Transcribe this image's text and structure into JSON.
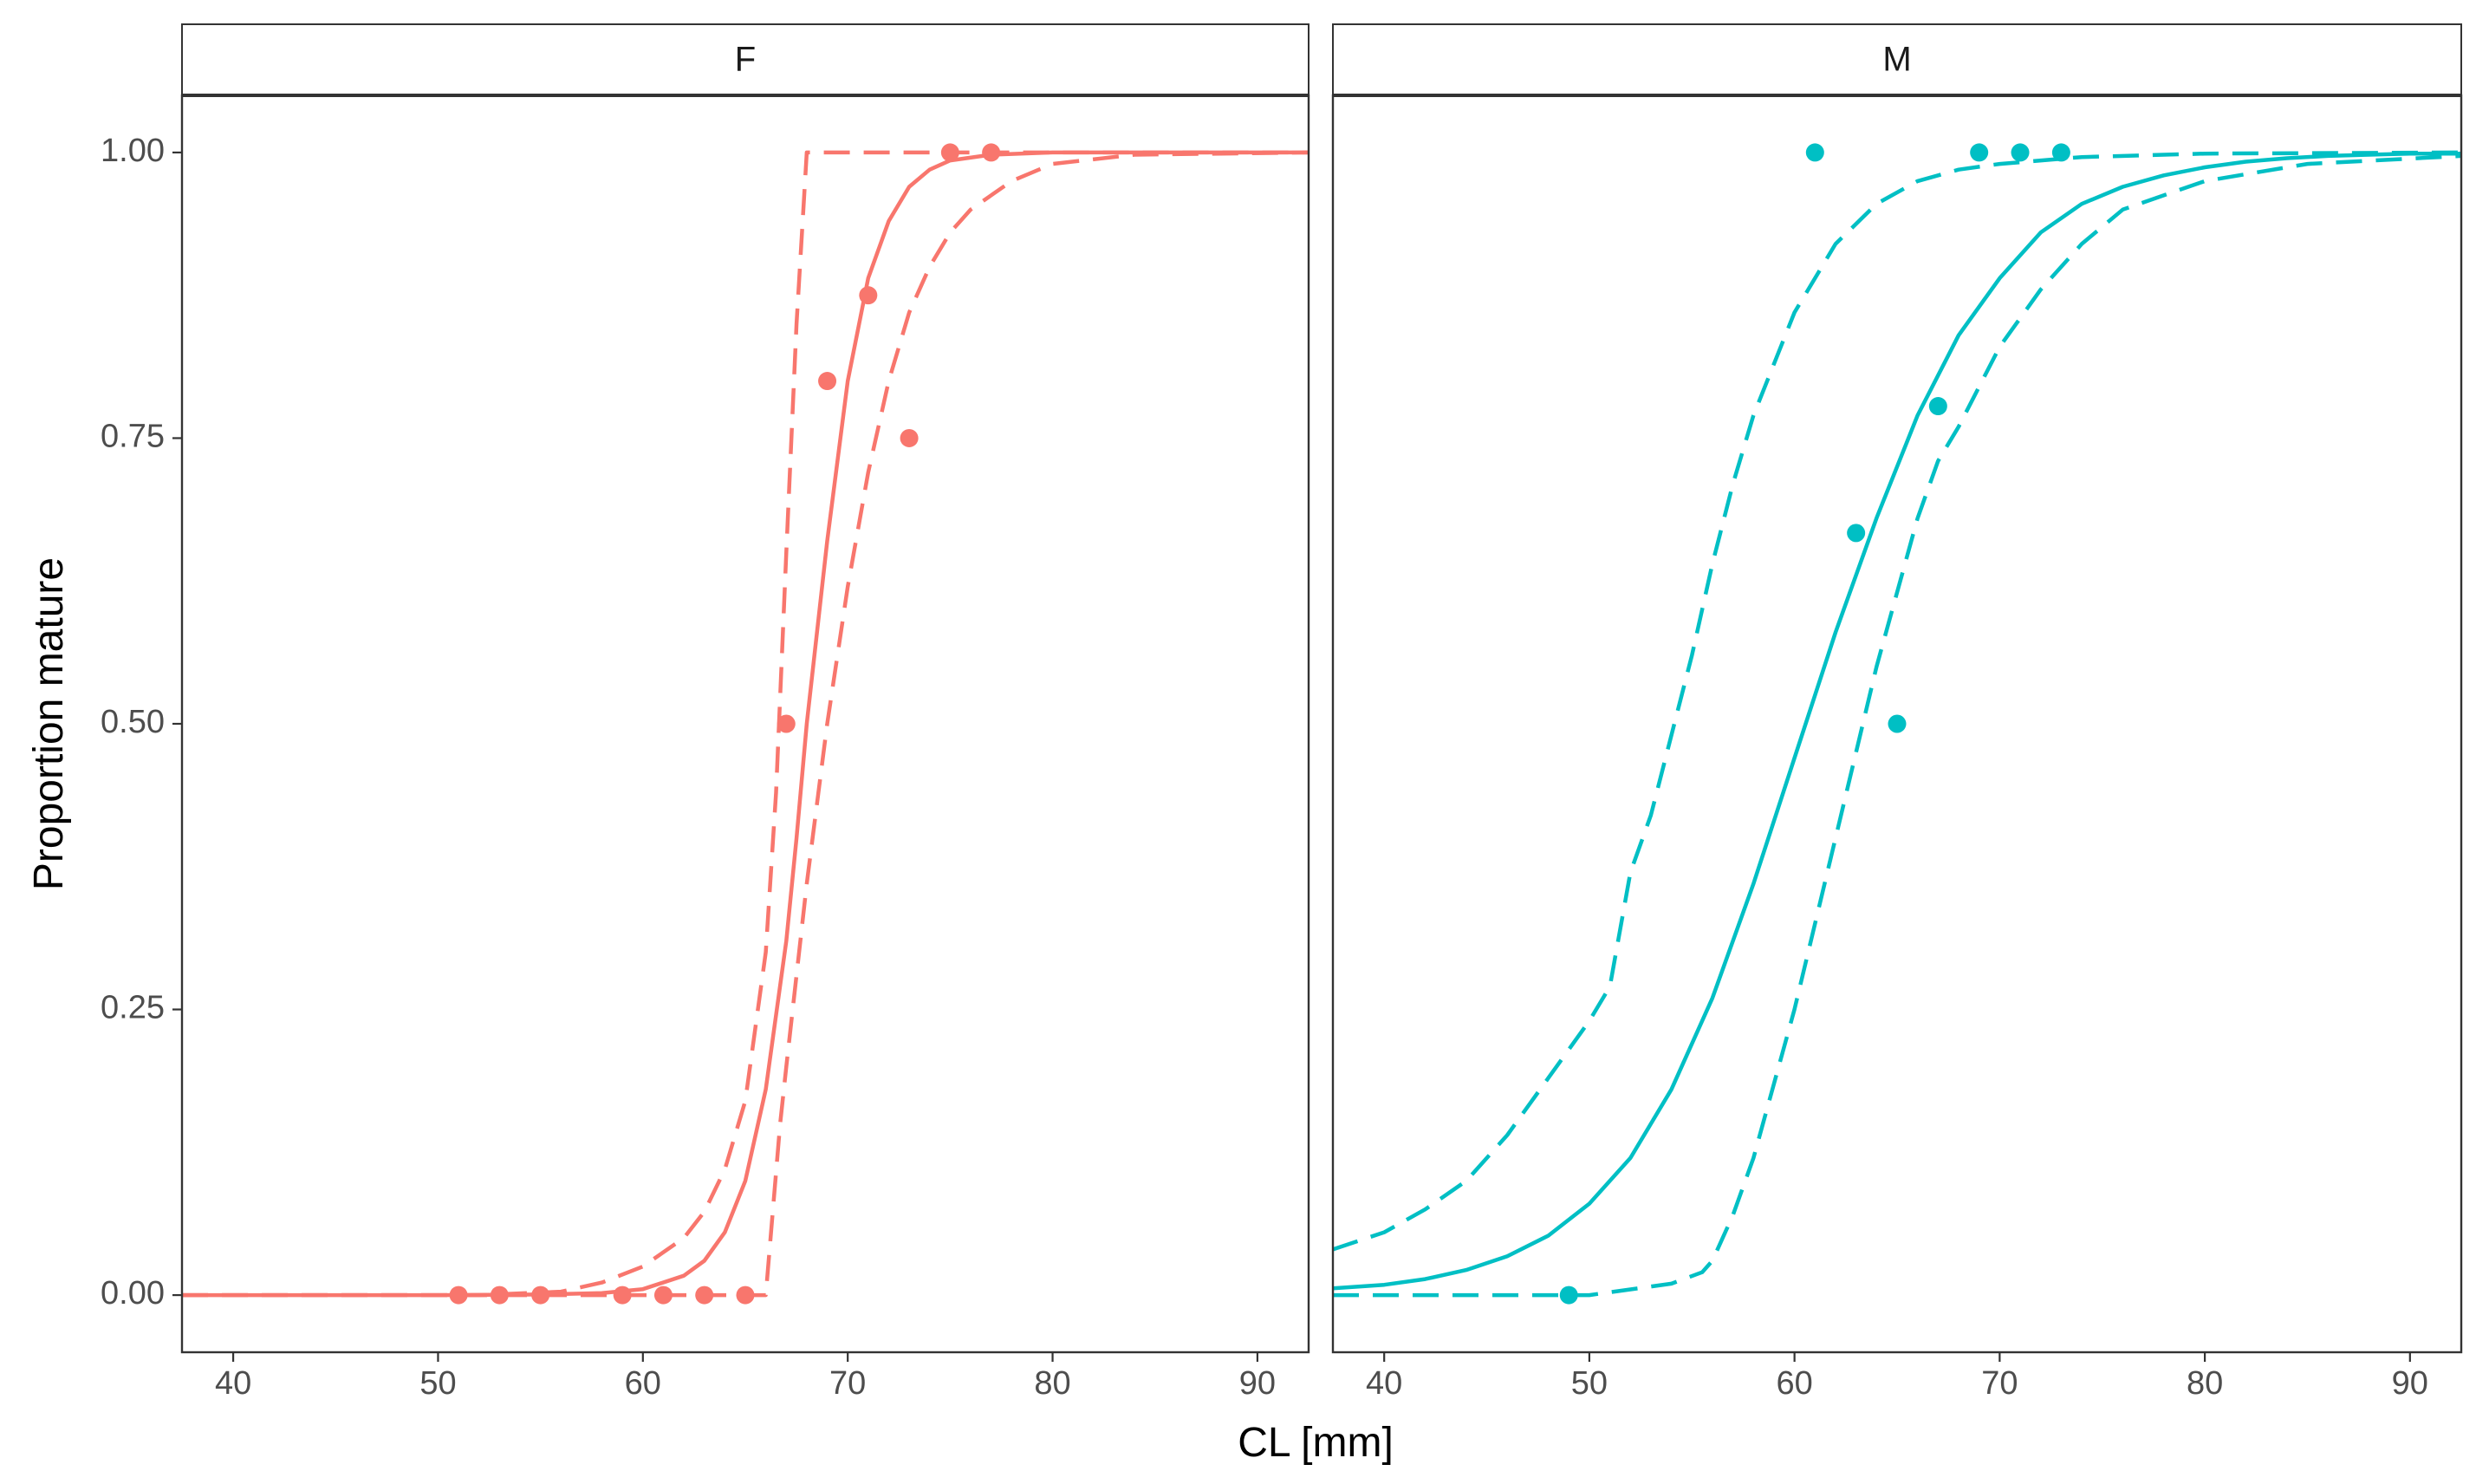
{
  "chart_data": {
    "type": "line",
    "xlabel": "CL [mm]",
    "ylabel": "Proportion mature",
    "xlim": [
      37.5,
      92.5
    ],
    "ylim": [
      -0.05,
      1.05
    ],
    "x_ticks": [
      40,
      50,
      60,
      70,
      80,
      90
    ],
    "y_ticks": [
      0,
      0.25,
      0.5,
      0.75,
      1
    ],
    "y_tick_labels": [
      "0.00",
      "0.25",
      "0.50",
      "0.75",
      "1.00"
    ],
    "grid": false,
    "legend": "none",
    "panels": [
      {
        "strip_label": "F",
        "color": "#F8766D",
        "points": {
          "x": [
            51,
            53,
            55,
            59,
            61,
            63,
            65,
            67,
            69,
            71,
            73,
            75,
            77
          ],
          "y": [
            0,
            0,
            0,
            0,
            0,
            0,
            0,
            0.5,
            0.8,
            0.875,
            0.75,
            1,
            1
          ]
        },
        "fit": {
          "x": [
            37.5,
            50,
            55,
            58,
            60,
            62,
            63,
            64,
            65,
            66,
            67,
            67.5,
            68,
            69,
            70,
            71,
            72,
            73,
            74,
            75,
            77,
            80,
            85,
            92.5
          ],
          "y": [
            0,
            0,
            0.0005,
            0.0017,
            0.0052,
            0.017,
            0.03,
            0.055,
            0.1,
            0.18,
            0.31,
            0.4,
            0.5,
            0.66,
            0.8,
            0.89,
            0.94,
            0.97,
            0.985,
            0.993,
            0.998,
            1,
            1,
            1
          ]
        },
        "ci_lower": {
          "x": [
            37.5,
            65,
            66,
            66.7,
            67,
            68,
            69,
            70,
            71,
            72,
            73,
            74,
            75,
            76,
            78,
            80,
            84,
            92.5
          ],
          "y": [
            0,
            0,
            0,
            0.15,
            0.2,
            0.36,
            0.5,
            0.62,
            0.72,
            0.8,
            0.86,
            0.9,
            0.93,
            0.95,
            0.975,
            0.99,
            0.998,
            1
          ]
        },
        "ci_upper": {
          "x": [
            37.5,
            52,
            56,
            58,
            60,
            62,
            63,
            64,
            65,
            66,
            66.5,
            67,
            67.5,
            68,
            70,
            80,
            92.5
          ],
          "y": [
            0,
            0,
            0.003,
            0.011,
            0.025,
            0.05,
            0.073,
            0.11,
            0.17,
            0.3,
            0.44,
            0.65,
            0.85,
            1,
            1,
            1,
            1
          ]
        }
      },
      {
        "strip_label": "M",
        "color": "#00BFC4",
        "points": {
          "x": [
            49,
            61,
            63,
            65,
            67,
            69,
            71,
            73
          ],
          "y": [
            0,
            1,
            0.667,
            0.5,
            0.778,
            1,
            1,
            1
          ]
        },
        "fit": {
          "x": [
            37.5,
            40,
            42,
            44,
            46,
            48,
            50,
            52,
            54,
            56,
            58,
            60,
            62,
            64,
            66,
            68,
            70,
            72,
            74,
            76,
            78,
            80,
            82,
            84,
            86,
            88,
            90,
            92.5
          ],
          "y": [
            0.006,
            0.009,
            0.014,
            0.022,
            0.034,
            0.052,
            0.08,
            0.12,
            0.18,
            0.26,
            0.36,
            0.47,
            0.58,
            0.68,
            0.77,
            0.84,
            0.89,
            0.93,
            0.955,
            0.97,
            0.98,
            0.987,
            0.992,
            0.995,
            0.997,
            0.998,
            0.999,
            0.999
          ]
        },
        "ci_lower": {
          "x": [
            37.5,
            50,
            54,
            55.5,
            56,
            57,
            58,
            60,
            62,
            64,
            66,
            67,
            68,
            70,
            72,
            74,
            76,
            80,
            85,
            92.5
          ],
          "y": [
            0,
            0,
            0.01,
            0.02,
            0.03,
            0.07,
            0.12,
            0.25,
            0.4,
            0.55,
            0.68,
            0.73,
            0.76,
            0.83,
            0.88,
            0.92,
            0.95,
            0.975,
            0.99,
            0.997
          ]
        },
        "ci_upper": {
          "x": [
            37.5,
            40,
            42,
            44,
            46,
            48,
            50,
            51,
            52,
            53,
            54,
            55,
            56,
            57,
            58,
            60,
            62,
            64,
            66,
            68,
            70,
            74,
            80,
            92.5
          ],
          "y": [
            0.04,
            0.055,
            0.075,
            0.1,
            0.14,
            0.19,
            0.24,
            0.27,
            0.37,
            0.42,
            0.49,
            0.56,
            0.64,
            0.71,
            0.77,
            0.86,
            0.92,
            0.955,
            0.975,
            0.985,
            0.99,
            0.996,
            0.999,
            1
          ]
        }
      }
    ]
  }
}
